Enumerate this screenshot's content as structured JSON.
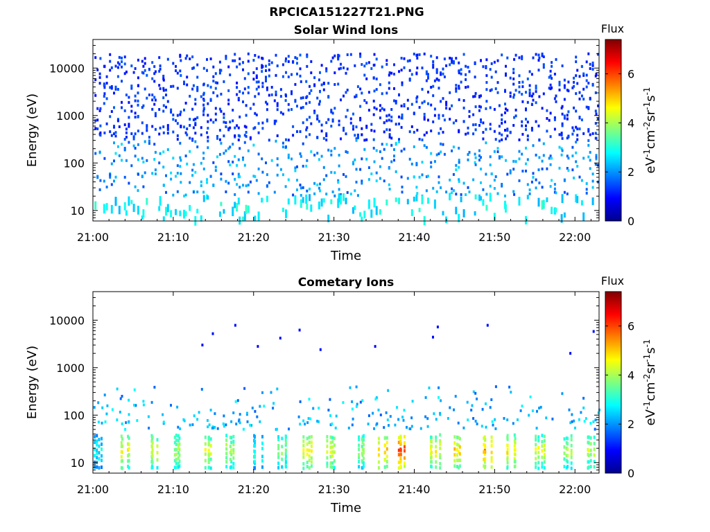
{
  "figure": {
    "title": "RPCICA151227T21.PNG"
  },
  "chart_data": [
    {
      "type": "heatmap",
      "title": "Solar Wind Ions",
      "xlabel": "Time",
      "ylabel": "Energy (eV)",
      "x_ticks": [
        "21:00",
        "21:10",
        "21:20",
        "21:30",
        "21:40",
        "21:50",
        "22:00"
      ],
      "xlim": [
        "21:00",
        "22:03"
      ],
      "y_scale": "log",
      "y_ticks": [
        "10",
        "100",
        "1000",
        "10000"
      ],
      "ylim": [
        6,
        40000
      ],
      "colorbar": {
        "title": "Flux",
        "label": "eV-1cm-2sr-1s-1",
        "ticks": [
          "0",
          "2",
          "4",
          "6"
        ],
        "range": [
          0,
          7.4
        ],
        "colormap": "jet"
      },
      "description_of_data": "sparse scattered pixels; high energies (300-20000 eV) mostly flux 1-1.6 (blue); low energies (6-100 eV) flux 2-3 (cyan/green)",
      "seed": 1227,
      "density": {
        "high_band_eV": [
          300,
          20000
        ],
        "high_flux": [
          1.0,
          1.6
        ],
        "mid_band_eV": [
          20,
          300
        ],
        "mid_flux": [
          1.4,
          2.6
        ],
        "low_band_eV": [
          6,
          20
        ],
        "low_flux": [
          2.2,
          3.2
        ]
      }
    },
    {
      "type": "heatmap",
      "title": "Cometary Ions",
      "xlabel": "Time",
      "ylabel": "Energy (eV)",
      "x_ticks": [
        "21:00",
        "21:10",
        "21:20",
        "21:30",
        "21:40",
        "21:50",
        "22:00"
      ],
      "xlim": [
        "21:00",
        "22:03"
      ],
      "y_scale": "log",
      "y_ticks": [
        "10",
        "100",
        "1000",
        "10000"
      ],
      "ylim": [
        6,
        40000
      ],
      "colorbar": {
        "title": "Flux",
        "label": "eV-1cm-2sr-1s-1",
        "ticks": [
          "0",
          "2",
          "4",
          "6"
        ],
        "range": [
          0,
          7.4
        ],
        "colormap": "jet"
      },
      "description_of_data": "periodic bursts at low energy (8-40 eV) with flux up to ~6; sparse cyan pixels at 50-400 eV; isolated blue points at 2000-8000 eV",
      "burst_times_min": [
        0.5,
        4,
        7.5,
        10.5,
        14,
        17,
        20.5,
        23.5,
        26.5,
        29.5,
        33,
        36,
        38.5,
        42.5,
        45.5,
        49,
        52,
        55.5,
        59,
        62
      ],
      "burst_peak_flux": [
        3.2,
        5.0,
        4.8,
        4.4,
        4.8,
        4.6,
        3.6,
        4.2,
        5.2,
        5.0,
        4.4,
        5.6,
        6.4,
        5.0,
        5.4,
        5.8,
        5.2,
        4.8,
        4.6,
        4.6
      ],
      "isolated_points": [
        {
          "t": 13.5,
          "e": 3000,
          "flux": 1.0
        },
        {
          "t": 14.8,
          "e": 5200,
          "flux": 1.0
        },
        {
          "t": 17.6,
          "e": 7800,
          "flux": 1.0
        },
        {
          "t": 20.4,
          "e": 2800,
          "flux": 1.0
        },
        {
          "t": 23.2,
          "e": 4200,
          "flux": 1.0
        },
        {
          "t": 25.6,
          "e": 6200,
          "flux": 1.0
        },
        {
          "t": 28.2,
          "e": 2400,
          "flux": 1.0
        },
        {
          "t": 35.0,
          "e": 2800,
          "flux": 1.0
        },
        {
          "t": 42.2,
          "e": 4400,
          "flux": 1.0
        },
        {
          "t": 42.8,
          "e": 7200,
          "flux": 1.0
        },
        {
          "t": 49.0,
          "e": 7800,
          "flux": 1.0
        },
        {
          "t": 59.3,
          "e": 2000,
          "flux": 1.0
        },
        {
          "t": 62.2,
          "e": 5800,
          "flux": 1.0
        }
      ],
      "seed": 4021
    }
  ]
}
